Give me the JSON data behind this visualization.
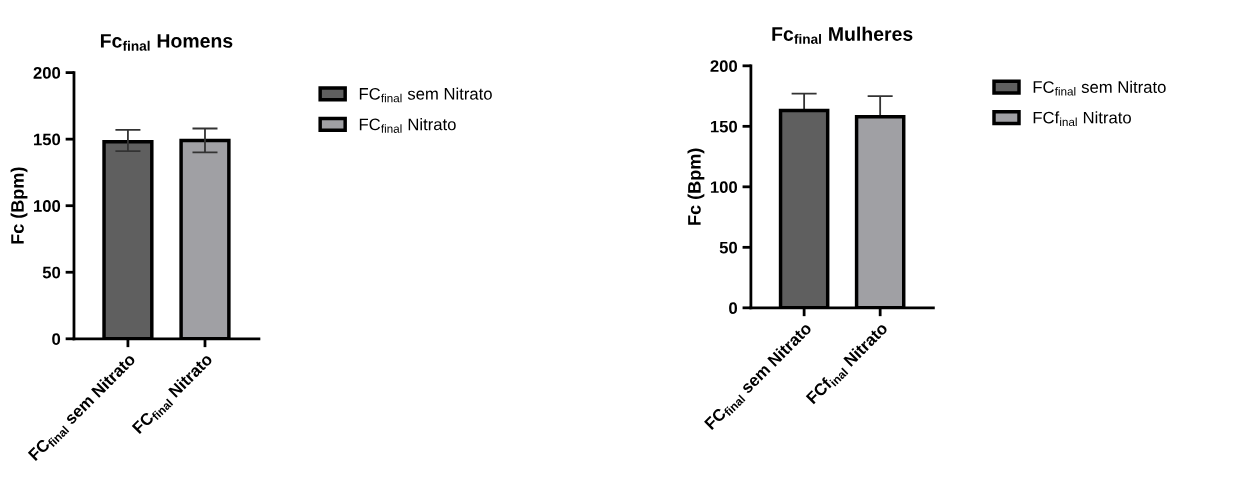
{
  "chart_data": [
    {
      "type": "bar",
      "title": "Fc$_{final}$ Homens",
      "ylabel": "Fc (Bpm)",
      "categories": [
        "FC$_{final}$ sem Nitrato",
        "FC$_{final}$ Nitrato"
      ],
      "series": [
        {
          "name": "FC$_{final}$ sem Nitrato",
          "color": "#5f5f5f",
          "values": [
            148,
            null
          ],
          "errors": [
            [
              141,
              157
            ],
            null
          ]
        },
        {
          "name": "FC$_{final}$ Nitrato",
          "color": "#a0a0a4",
          "values": [
            null,
            149
          ],
          "errors": [
            null,
            [
              140,
              158
            ]
          ]
        }
      ],
      "ylim": [
        0,
        200
      ],
      "yticks": [
        0,
        50,
        100,
        150,
        200
      ],
      "legend": "right"
    },
    {
      "type": "bar",
      "title": "Fc$_{final}$ Mulheres",
      "ylabel": "Fc (Bpm)",
      "categories": [
        "FC$_{final}$ sem Nitrato",
        "FCf$_{inal}$ Nitrato"
      ],
      "series": [
        {
          "name": "FC$_{final}$ sem Nitrato",
          "color": "#5f5f5f",
          "values": [
            163,
            null
          ],
          "errors": [
            [
              163,
              177
            ],
            null
          ]
        },
        {
          "name": "FCf$_{inal}$ Nitrato",
          "color": "#a0a0a4",
          "values": [
            null,
            158
          ],
          "errors": [
            null,
            [
              158,
              175
            ]
          ]
        }
      ],
      "ylim": [
        0,
        200
      ],
      "yticks": [
        0,
        50,
        100,
        150,
        200
      ],
      "legend": "right"
    }
  ]
}
